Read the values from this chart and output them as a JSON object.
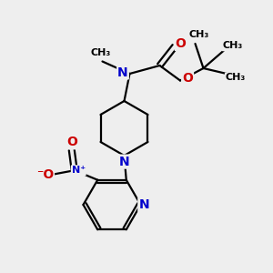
{
  "background_color": "#eeeeee",
  "atom_colors": {
    "C": "#000000",
    "N": "#0000cc",
    "O": "#cc0000"
  },
  "bond_color": "#000000",
  "bond_width": 1.6,
  "figsize": [
    3.0,
    3.0
  ],
  "dpi": 100,
  "xlim": [
    0,
    10
  ],
  "ylim": [
    0,
    10
  ]
}
